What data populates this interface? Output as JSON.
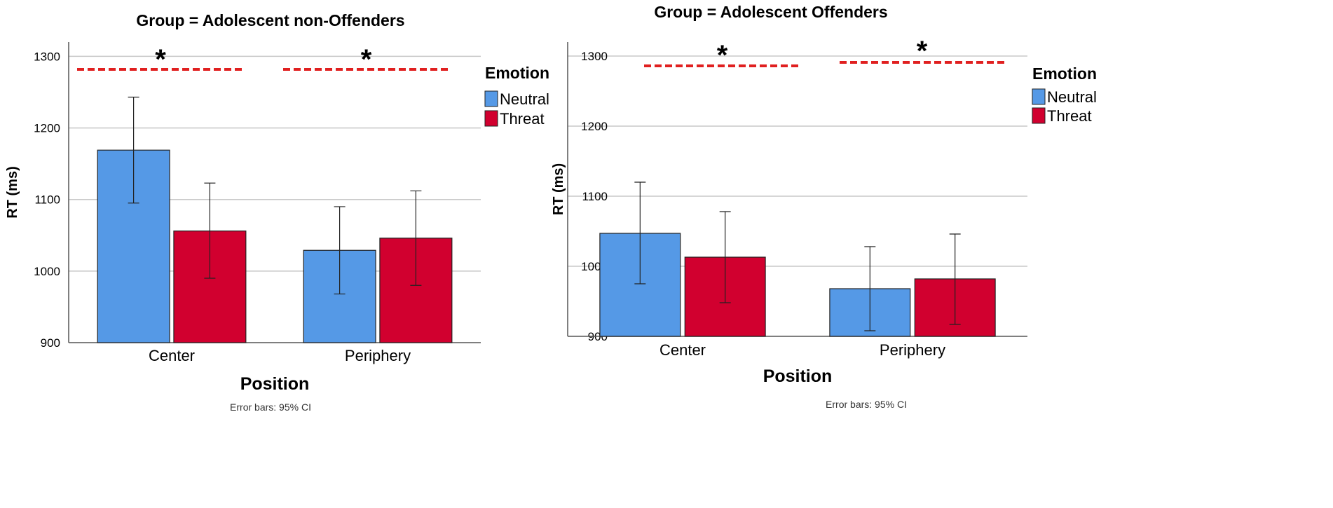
{
  "chart_data": [
    {
      "type": "bar",
      "title": "Group = Adolescent non-Offenders",
      "xlabel": "Position",
      "ylabel": "RT (ms)",
      "ylim": [
        900,
        1320
      ],
      "yticks": [
        900,
        1000,
        1100,
        1200,
        1300
      ],
      "grid": true,
      "categories": [
        "Center",
        "Periphery"
      ],
      "series": [
        {
          "name": "Neutral",
          "color": "#5599e6",
          "values": [
            1169,
            1029
          ],
          "ci_low": [
            1095,
            968
          ],
          "ci_high": [
            1243,
            1090
          ]
        },
        {
          "name": "Threat",
          "color": "#d1002f",
          "values": [
            1056,
            1046
          ],
          "ci_low": [
            990,
            980
          ],
          "ci_high": [
            1123,
            1112
          ]
        }
      ],
      "legend_title": "Emotion",
      "legend_position": "right",
      "significance": [
        "*",
        "*"
      ],
      "footnote": "Error bars: 95% CI"
    },
    {
      "type": "bar",
      "title": "Group = Adolescent Offenders",
      "xlabel": "Position",
      "ylabel": "RT (ms)",
      "ylim": [
        900,
        1320
      ],
      "yticks": [
        900,
        1000,
        1100,
        1200,
        1300
      ],
      "grid": true,
      "categories": [
        "Center",
        "Periphery"
      ],
      "series": [
        {
          "name": "Neutral",
          "color": "#5599e6",
          "values": [
            1047,
            968
          ],
          "ci_low": [
            975,
            908
          ],
          "ci_high": [
            1120,
            1028
          ]
        },
        {
          "name": "Threat",
          "color": "#d1002f",
          "values": [
            1013,
            982
          ],
          "ci_low": [
            948,
            917
          ],
          "ci_high": [
            1078,
            1046
          ]
        }
      ],
      "legend_title": "Emotion",
      "legend_position": "right",
      "significance": [
        "*",
        "*"
      ],
      "footnote": "Error bars: 95% CI"
    }
  ]
}
